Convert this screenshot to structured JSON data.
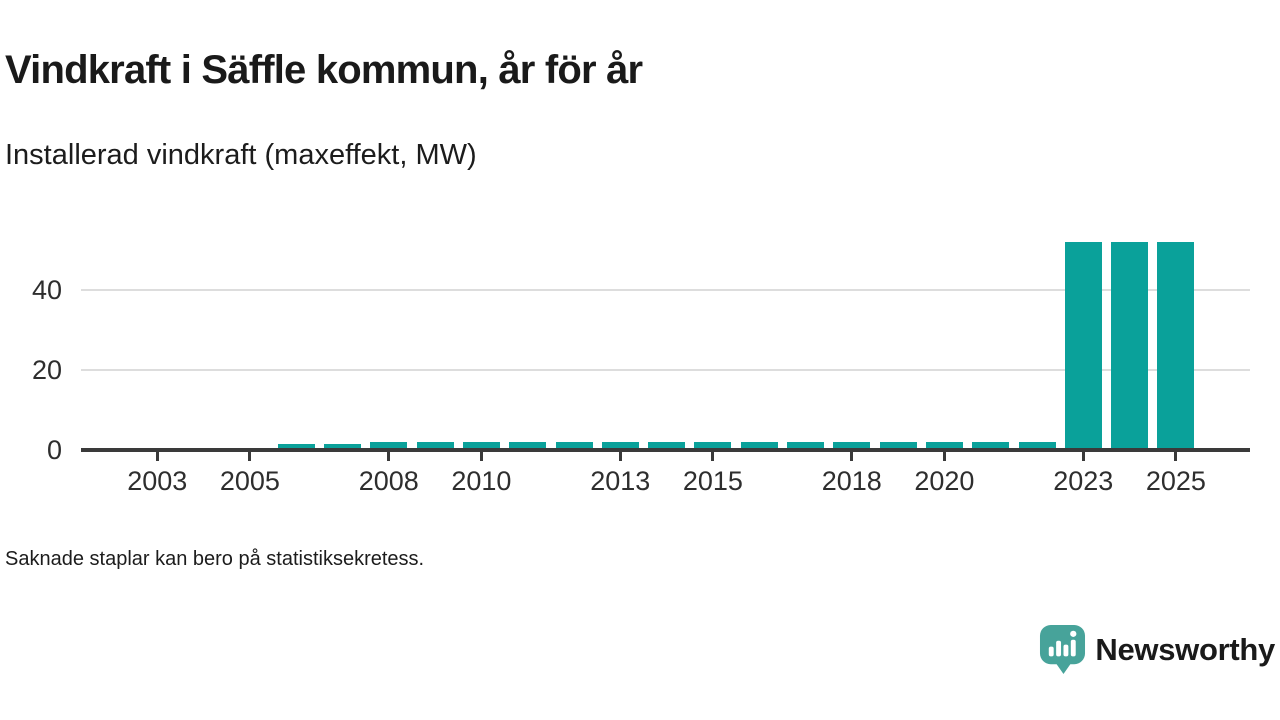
{
  "header": {
    "title": "Vindkraft i Säffle kommun, år för år",
    "subtitle": "Installerad vindkraft (maxeffekt, MW)"
  },
  "chart_data": {
    "type": "bar",
    "title": "Vindkraft i Säffle kommun, år för år",
    "subtitle": "Installerad vindkraft (maxeffekt, MW)",
    "xlabel": "",
    "ylabel": "MW",
    "x": [
      2002,
      2003,
      2004,
      2005,
      2006,
      2007,
      2008,
      2009,
      2010,
      2011,
      2012,
      2013,
      2014,
      2015,
      2016,
      2017,
      2018,
      2019,
      2020,
      2021,
      2022,
      2023,
      2024,
      2025
    ],
    "values": [
      null,
      null,
      null,
      null,
      1.5,
      1.5,
      2.1,
      2.1,
      2.1,
      2.1,
      2.1,
      2.1,
      2.1,
      2.1,
      2.1,
      2.1,
      2.1,
      2.1,
      2.1,
      2.1,
      2.1,
      52,
      52,
      52
    ],
    "yticks": [
      0,
      20,
      40
    ],
    "xticks": [
      2003,
      2005,
      2008,
      2010,
      2013,
      2015,
      2018,
      2020,
      2023,
      2025
    ],
    "ylim": [
      0,
      56
    ],
    "grid": "horizontal",
    "legend": "none",
    "bar_color": "#0aa19a",
    "axis_color": "#3a3a3a",
    "grid_color": "#dddddd"
  },
  "footer": {
    "note": "Saknade staplar kan bero på statistiksekretess."
  },
  "branding": {
    "logo_text": "Newsworthy",
    "logo_color": "#47a39a",
    "logo_icon": "bar-chart-speech-bubble-icon"
  }
}
